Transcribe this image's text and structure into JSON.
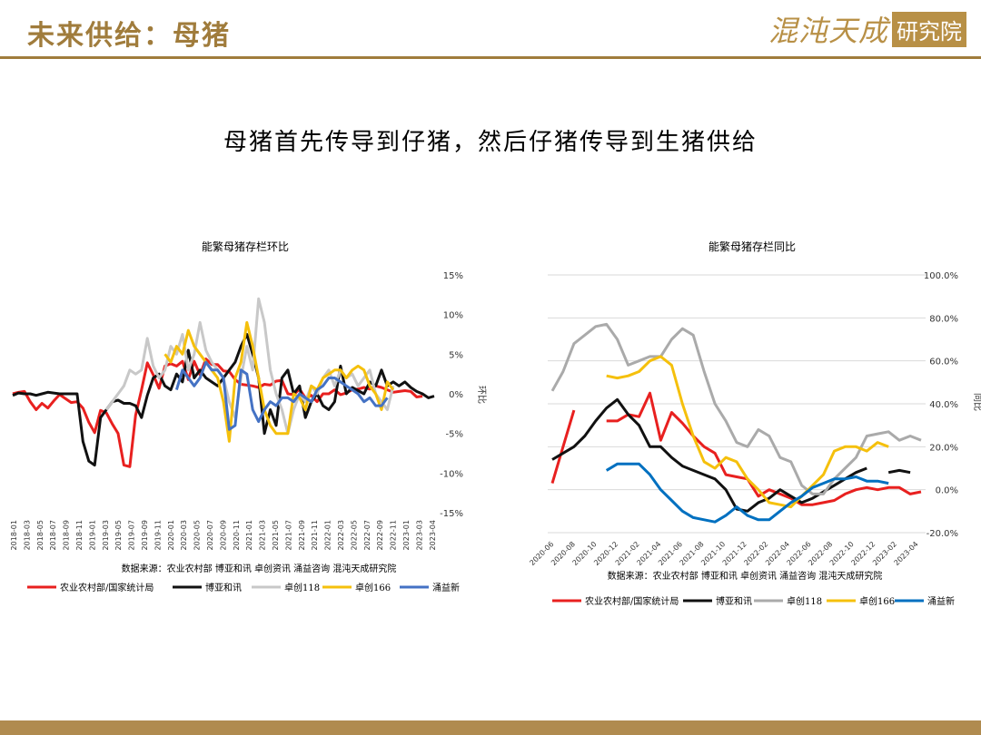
{
  "header": {
    "title": "未来供给：母猪"
  },
  "logo": {
    "script_text": "混沌天成",
    "box_text": "研究院"
  },
  "headline": "母猪首先传导到仔猪，然后仔猪传导到生猪供给",
  "chart_data": [
    {
      "type": "line",
      "title": "能繁母猪存栏环比",
      "ylabel": "环比",
      "ylim": [
        -0.15,
        0.15
      ],
      "y_ticks": [
        "15%",
        "10%",
        "5%",
        "0%",
        "-5%",
        "-10%",
        "-15%"
      ],
      "y_tick_values": [
        0.15,
        0.1,
        0.05,
        0.0,
        -0.05,
        -0.1,
        -0.15
      ],
      "x_ticks": [
        "2018-01",
        "2018-03",
        "2018-05",
        "2018-07",
        "2018-09",
        "2018-11",
        "2019-01",
        "2019-03",
        "2019-05",
        "2019-07",
        "2019-09",
        "2019-11",
        "2020-01",
        "2020-03",
        "2020-05",
        "2020-07",
        "2020-09",
        "2020-11",
        "2021-01",
        "2021-03",
        "2021-05",
        "2021-07",
        "2021-09",
        "2021-11",
        "2022-01",
        "2022-03",
        "2022-05",
        "2022-07",
        "2022-09",
        "2022-11",
        "2023-01",
        "2023-03"
      ],
      "x_extra_ticks": [
        "2023-04"
      ],
      "source": "数据来源：农业农村部 博亚和讯 卓创资讯 涌益咨询 混沌天成研究院",
      "series": [
        {
          "name": "农业农村部/国家统计局",
          "color": "#e8201f",
          "values": [
            0.0,
            0.002,
            0.003,
            -0.01,
            -0.02,
            -0.012,
            -0.018,
            -0.009,
            -0.001,
            -0.006,
            -0.011,
            -0.01,
            -0.018,
            -0.036,
            -0.049,
            -0.021,
            -0.024,
            -0.038,
            -0.05,
            -0.09,
            -0.092,
            -0.027,
            0.005,
            0.039,
            0.024,
            0.007,
            0.035,
            0.038,
            0.035,
            0.041,
            0.018,
            0.041,
            0.024,
            0.044,
            0.037,
            0.037,
            0.029,
            0.028,
            0.018,
            0.012,
            0.011,
            0.01,
            0.008,
            0.012,
            0.011,
            0.016,
            0.017,
            0.0,
            -0.001,
            0.006,
            -0.005,
            -0.002,
            -0.01,
            0.0,
            0.0,
            0.005,
            -0.001,
            0.001,
            0.005,
            0.006,
            0.008,
            0.006,
            0.01,
            0.008,
            0.005,
            0.002,
            0.003,
            0.004,
            0.003,
            -0.004,
            -0.003
          ]
        },
        {
          "name": "博亚和讯",
          "color": "#111111",
          "values": [
            -0.002,
            0.001,
            0.0,
            0.0,
            -0.002,
            0.0,
            0.002,
            0.001,
            0.0,
            0.0,
            0.0,
            0.0,
            -0.06,
            -0.085,
            -0.09,
            -0.03,
            -0.02,
            -0.01,
            -0.008,
            -0.012,
            -0.012,
            -0.015,
            -0.03,
            -0.002,
            0.02,
            0.025,
            0.01,
            0.005,
            0.025,
            0.015,
            0.055,
            0.02,
            0.03,
            0.02,
            0.015,
            0.01,
            0.02,
            0.03,
            0.04,
            0.06,
            0.075,
            0.05,
            0.02,
            -0.05,
            -0.02,
            -0.04,
            0.02,
            0.03,
            0.0,
            0.01,
            -0.03,
            -0.01,
            0.0,
            -0.015,
            -0.02,
            -0.01,
            0.035,
            0.0,
            0.008,
            0.004,
            0.0,
            0.015,
            0.01,
            0.03,
            0.01,
            0.015,
            0.01,
            0.015,
            0.008,
            0.003,
            0.0,
            -0.005,
            -0.003
          ]
        },
        {
          "name": "卓创118",
          "color": "#c8c8c8",
          "values": [
            null,
            null,
            null,
            null,
            null,
            null,
            null,
            null,
            null,
            null,
            null,
            null,
            null,
            null,
            null,
            null,
            -0.02,
            -0.01,
            0.0,
            0.01,
            0.03,
            0.025,
            0.03,
            0.07,
            0.035,
            0.02,
            0.03,
            0.06,
            0.05,
            0.075,
            0.03,
            0.05,
            0.09,
            0.055,
            0.04,
            0.03,
            0.02,
            -0.01,
            -0.03,
            0.02,
            0.06,
            0.03,
            0.12,
            0.09,
            0.03,
            0.0,
            -0.02,
            -0.05,
            -0.02,
            0.0,
            -0.01,
            0.01,
            0.0,
            0.02,
            0.03,
            0.01,
            0.03,
            0.02,
            0.025,
            0.01,
            0.02,
            0.03,
            0.0,
            -0.01,
            -0.02,
            0.01
          ]
        },
        {
          "name": "卓创166",
          "color": "#f5c00c",
          "values": [
            null,
            null,
            null,
            null,
            null,
            null,
            null,
            null,
            null,
            null,
            null,
            null,
            null,
            null,
            null,
            null,
            null,
            null,
            null,
            null,
            null,
            null,
            null,
            null,
            null,
            null,
            0.05,
            0.04,
            0.06,
            0.05,
            0.08,
            0.06,
            0.05,
            0.04,
            0.03,
            0.02,
            -0.01,
            -0.06,
            0.02,
            0.04,
            0.09,
            0.06,
            0.02,
            -0.02,
            -0.04,
            -0.05,
            -0.05,
            -0.05,
            0.0,
            -0.005,
            -0.02,
            0.01,
            0.005,
            0.02,
            0.025,
            0.03,
            0.03,
            0.02,
            0.03,
            0.035,
            0.03,
            0.01,
            0.0,
            -0.02,
            0.015,
            0.005
          ]
        },
        {
          "name": "涌益新",
          "color": "#4472c4",
          "values": [
            null,
            null,
            null,
            null,
            null,
            null,
            null,
            null,
            null,
            null,
            null,
            null,
            null,
            null,
            null,
            null,
            null,
            null,
            null,
            null,
            null,
            null,
            null,
            null,
            null,
            null,
            null,
            null,
            0.005,
            0.03,
            0.02,
            0.01,
            0.02,
            0.04,
            0.03,
            0.03,
            0.02,
            -0.045,
            -0.04,
            0.03,
            0.025,
            -0.02,
            -0.035,
            -0.02,
            -0.01,
            -0.015,
            -0.005,
            -0.005,
            -0.01,
            0.0,
            -0.005,
            -0.01,
            0.005,
            0.01,
            0.02,
            0.02,
            0.015,
            0.01,
            0.005,
            0.0,
            -0.01,
            -0.005,
            -0.015,
            -0.015,
            -0.005
          ]
        }
      ]
    },
    {
      "type": "line",
      "title": "能繁母猪存栏同比",
      "ylabel": "同比",
      "ylim": [
        -0.2,
        1.0
      ],
      "y_ticks": [
        "100.0%",
        "80.0%",
        "60.0%",
        "40.0%",
        "20.0%",
        "0.0%",
        "-20.0%"
      ],
      "y_tick_values": [
        1.0,
        0.8,
        0.6,
        0.4,
        0.2,
        0.0,
        -0.2
      ],
      "x_ticks": [
        "2020-06",
        "2020-08",
        "2020-10",
        "2020-12",
        "2021-02",
        "2021-04",
        "2021-06",
        "2021-08",
        "2021-10",
        "2021-12",
        "2022-02",
        "2022-04",
        "2022-06",
        "2022-08",
        "2022-10",
        "2022-12",
        "2023-02",
        "2023-04"
      ],
      "source": "数据来源：农业农村部 博亚和讯 卓创资讯 涌益咨询 混沌天成研究院",
      "series": [
        {
          "name": "农业农村部/国家统计局",
          "color": "#e8201f",
          "values": [
            0.03,
            0.2,
            0.37,
            null,
            null,
            0.32,
            0.32,
            0.35,
            0.34,
            0.45,
            0.23,
            0.36,
            0.31,
            0.25,
            0.2,
            0.17,
            0.07,
            0.06,
            0.05,
            -0.03,
            0.0,
            -0.02,
            -0.04,
            -0.07,
            -0.07,
            -0.06,
            -0.05,
            -0.02,
            0.0,
            0.01,
            0.0,
            0.01,
            0.01,
            -0.02,
            -0.01
          ]
        },
        {
          "name": "博亚和讯",
          "color": "#111111",
          "values": [
            0.14,
            0.17,
            0.2,
            0.25,
            0.32,
            0.38,
            0.42,
            0.35,
            0.3,
            0.2,
            0.2,
            0.15,
            0.11,
            0.09,
            0.07,
            0.05,
            0.0,
            -0.09,
            -0.1,
            -0.06,
            -0.04,
            0.0,
            -0.03,
            -0.06,
            -0.04,
            -0.01,
            0.02,
            0.05,
            0.08,
            0.1,
            null,
            0.08,
            0.09,
            0.08
          ]
        },
        {
          "name": "卓创118",
          "color": "#aaaaaa",
          "values": [
            0.46,
            0.55,
            0.68,
            0.72,
            0.76,
            0.77,
            0.7,
            0.58,
            0.6,
            0.62,
            0.62,
            0.7,
            0.75,
            0.72,
            0.55,
            0.4,
            0.32,
            0.22,
            0.2,
            0.28,
            0.25,
            0.15,
            0.13,
            0.02,
            -0.02,
            -0.02,
            0.05,
            0.1,
            0.15,
            0.25,
            0.26,
            0.27,
            0.23,
            0.25,
            0.23
          ]
        },
        {
          "name": "卓创166",
          "color": "#f5c00c",
          "values": [
            null,
            null,
            null,
            null,
            null,
            0.53,
            0.52,
            0.53,
            0.55,
            0.6,
            0.62,
            0.58,
            0.4,
            0.25,
            0.13,
            0.1,
            0.15,
            0.13,
            0.05,
            0.0,
            -0.06,
            -0.07,
            -0.08,
            -0.03,
            0.02,
            0.07,
            0.18,
            0.2,
            0.2,
            0.18,
            0.22,
            0.2
          ]
        },
        {
          "name": "涌益新",
          "color": "#0070c0",
          "values": [
            null,
            null,
            null,
            null,
            null,
            0.09,
            0.12,
            0.12,
            0.12,
            0.07,
            0.0,
            -0.05,
            -0.1,
            -0.13,
            -0.14,
            -0.15,
            -0.12,
            -0.08,
            -0.12,
            -0.14,
            -0.14,
            -0.1,
            -0.06,
            -0.03,
            0.01,
            0.03,
            0.05,
            0.05,
            0.06,
            0.04,
            0.04,
            0.03
          ]
        }
      ]
    }
  ]
}
